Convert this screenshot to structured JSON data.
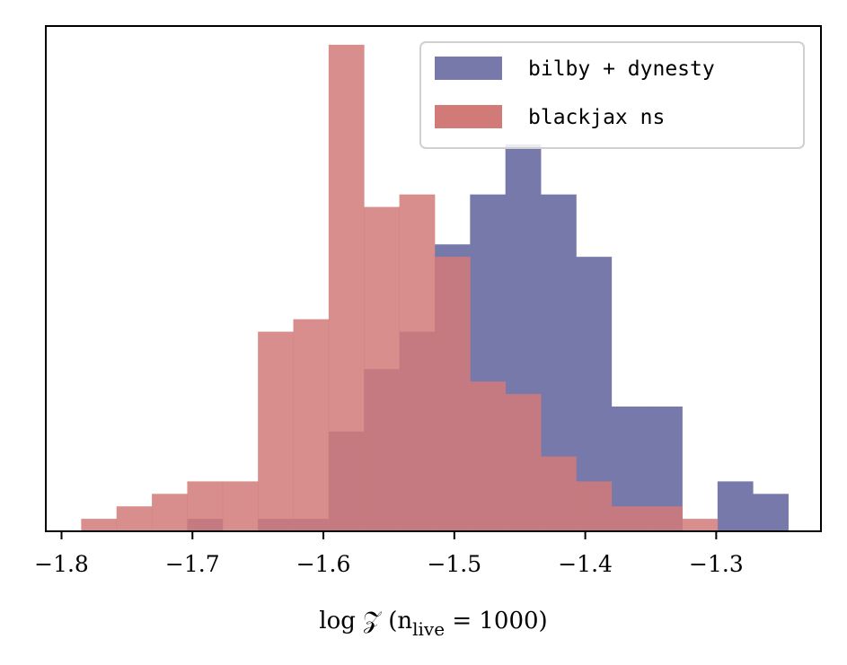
{
  "chart_data": {
    "type": "histogram",
    "xlabel": "log 𝒵 (n",
    "xlabel_sub": "live",
    "xlabel_tail": " = 1000)",
    "xlim": [
      -1.812,
      -1.22
    ],
    "ylim": [
      0,
      40.5
    ],
    "xticks": [
      -1.8,
      -1.7,
      -1.6,
      -1.5,
      -1.4,
      -1.3
    ],
    "xtick_labels": [
      "−1.8",
      "−1.7",
      "−1.6",
      "−1.5",
      "−1.4",
      "−1.3"
    ],
    "yticks_visible": false,
    "legend_position": "upper-right",
    "bin_edges": [
      -1.785,
      -1.758,
      -1.731,
      -1.704,
      -1.677,
      -1.65,
      -1.623,
      -1.596,
      -1.569,
      -1.542,
      -1.515,
      -1.488,
      -1.461,
      -1.434,
      -1.407,
      -1.38,
      -1.353,
      -1.326,
      -1.299,
      -1.272,
      -1.245
    ],
    "series": [
      {
        "name": "bilby + dynesty",
        "color": "#7779AB",
        "counts": [
          0,
          0,
          0,
          1,
          0,
          1,
          1,
          8,
          13,
          16,
          23,
          27,
          31,
          27,
          22,
          10,
          10,
          0,
          4,
          3
        ]
      },
      {
        "name": "blackjax ns",
        "color": "#D17A78",
        "counts": [
          1,
          2,
          3,
          4,
          4,
          16,
          17,
          39,
          26,
          27,
          22,
          12,
          11,
          6,
          4,
          2,
          2,
          1,
          0,
          0
        ]
      }
    ]
  }
}
